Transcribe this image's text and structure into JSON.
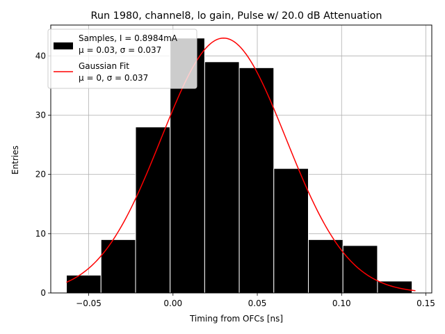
{
  "chart_data": {
    "type": "bar",
    "title": "Run 1980, channel8, lo gain, Pulse w/ 20.0 dB Attenuation",
    "xlabel": "Timing from OFCs [ns]",
    "ylabel": "Entries",
    "xlim": [
      -0.0725,
      0.1535
    ],
    "ylim": [
      0,
      45.2
    ],
    "xticks": [
      -0.05,
      0.0,
      0.05,
      0.1,
      0.15
    ],
    "xtick_labels": [
      "−0.05",
      "0.00",
      "0.05",
      "0.10",
      "0.15"
    ],
    "yticks": [
      0,
      10,
      20,
      30,
      40
    ],
    "ytick_labels": [
      "0",
      "10",
      "20",
      "30",
      "40"
    ],
    "grid": true,
    "bins": [
      {
        "left": -0.0632,
        "right": -0.0427,
        "count": 3
      },
      {
        "left": -0.0427,
        "right": -0.0222,
        "count": 9
      },
      {
        "left": -0.0222,
        "right": -0.0017,
        "count": 28
      },
      {
        "left": -0.0017,
        "right": 0.0188,
        "count": 43
      },
      {
        "left": 0.0188,
        "right": 0.0393,
        "count": 39
      },
      {
        "left": 0.0393,
        "right": 0.0598,
        "count": 38
      },
      {
        "left": 0.0598,
        "right": 0.0803,
        "count": 21
      },
      {
        "left": 0.0803,
        "right": 0.1008,
        "count": 9
      },
      {
        "left": 0.1008,
        "right": 0.1213,
        "count": 8
      },
      {
        "left": 0.1213,
        "right": 0.1418,
        "count": 2
      }
    ],
    "fit": {
      "name": "Gaussian Fit",
      "mu": 0.03,
      "sigma": 0.037,
      "amplitude": 43,
      "x_range": [
        -0.0632,
        0.1438
      ],
      "color": "#ff0000"
    },
    "legend": {
      "position": "top-left",
      "entries": [
        {
          "line1": "Samples, I = 0.8984mA",
          "line2": "μ = 0.03, σ = 0.037",
          "kind": "patch",
          "color": "#000000"
        },
        {
          "line1": "Gaussian Fit",
          "line2": "μ = 0, σ = 0.037",
          "kind": "line",
          "color": "#ff0000"
        }
      ]
    }
  }
}
